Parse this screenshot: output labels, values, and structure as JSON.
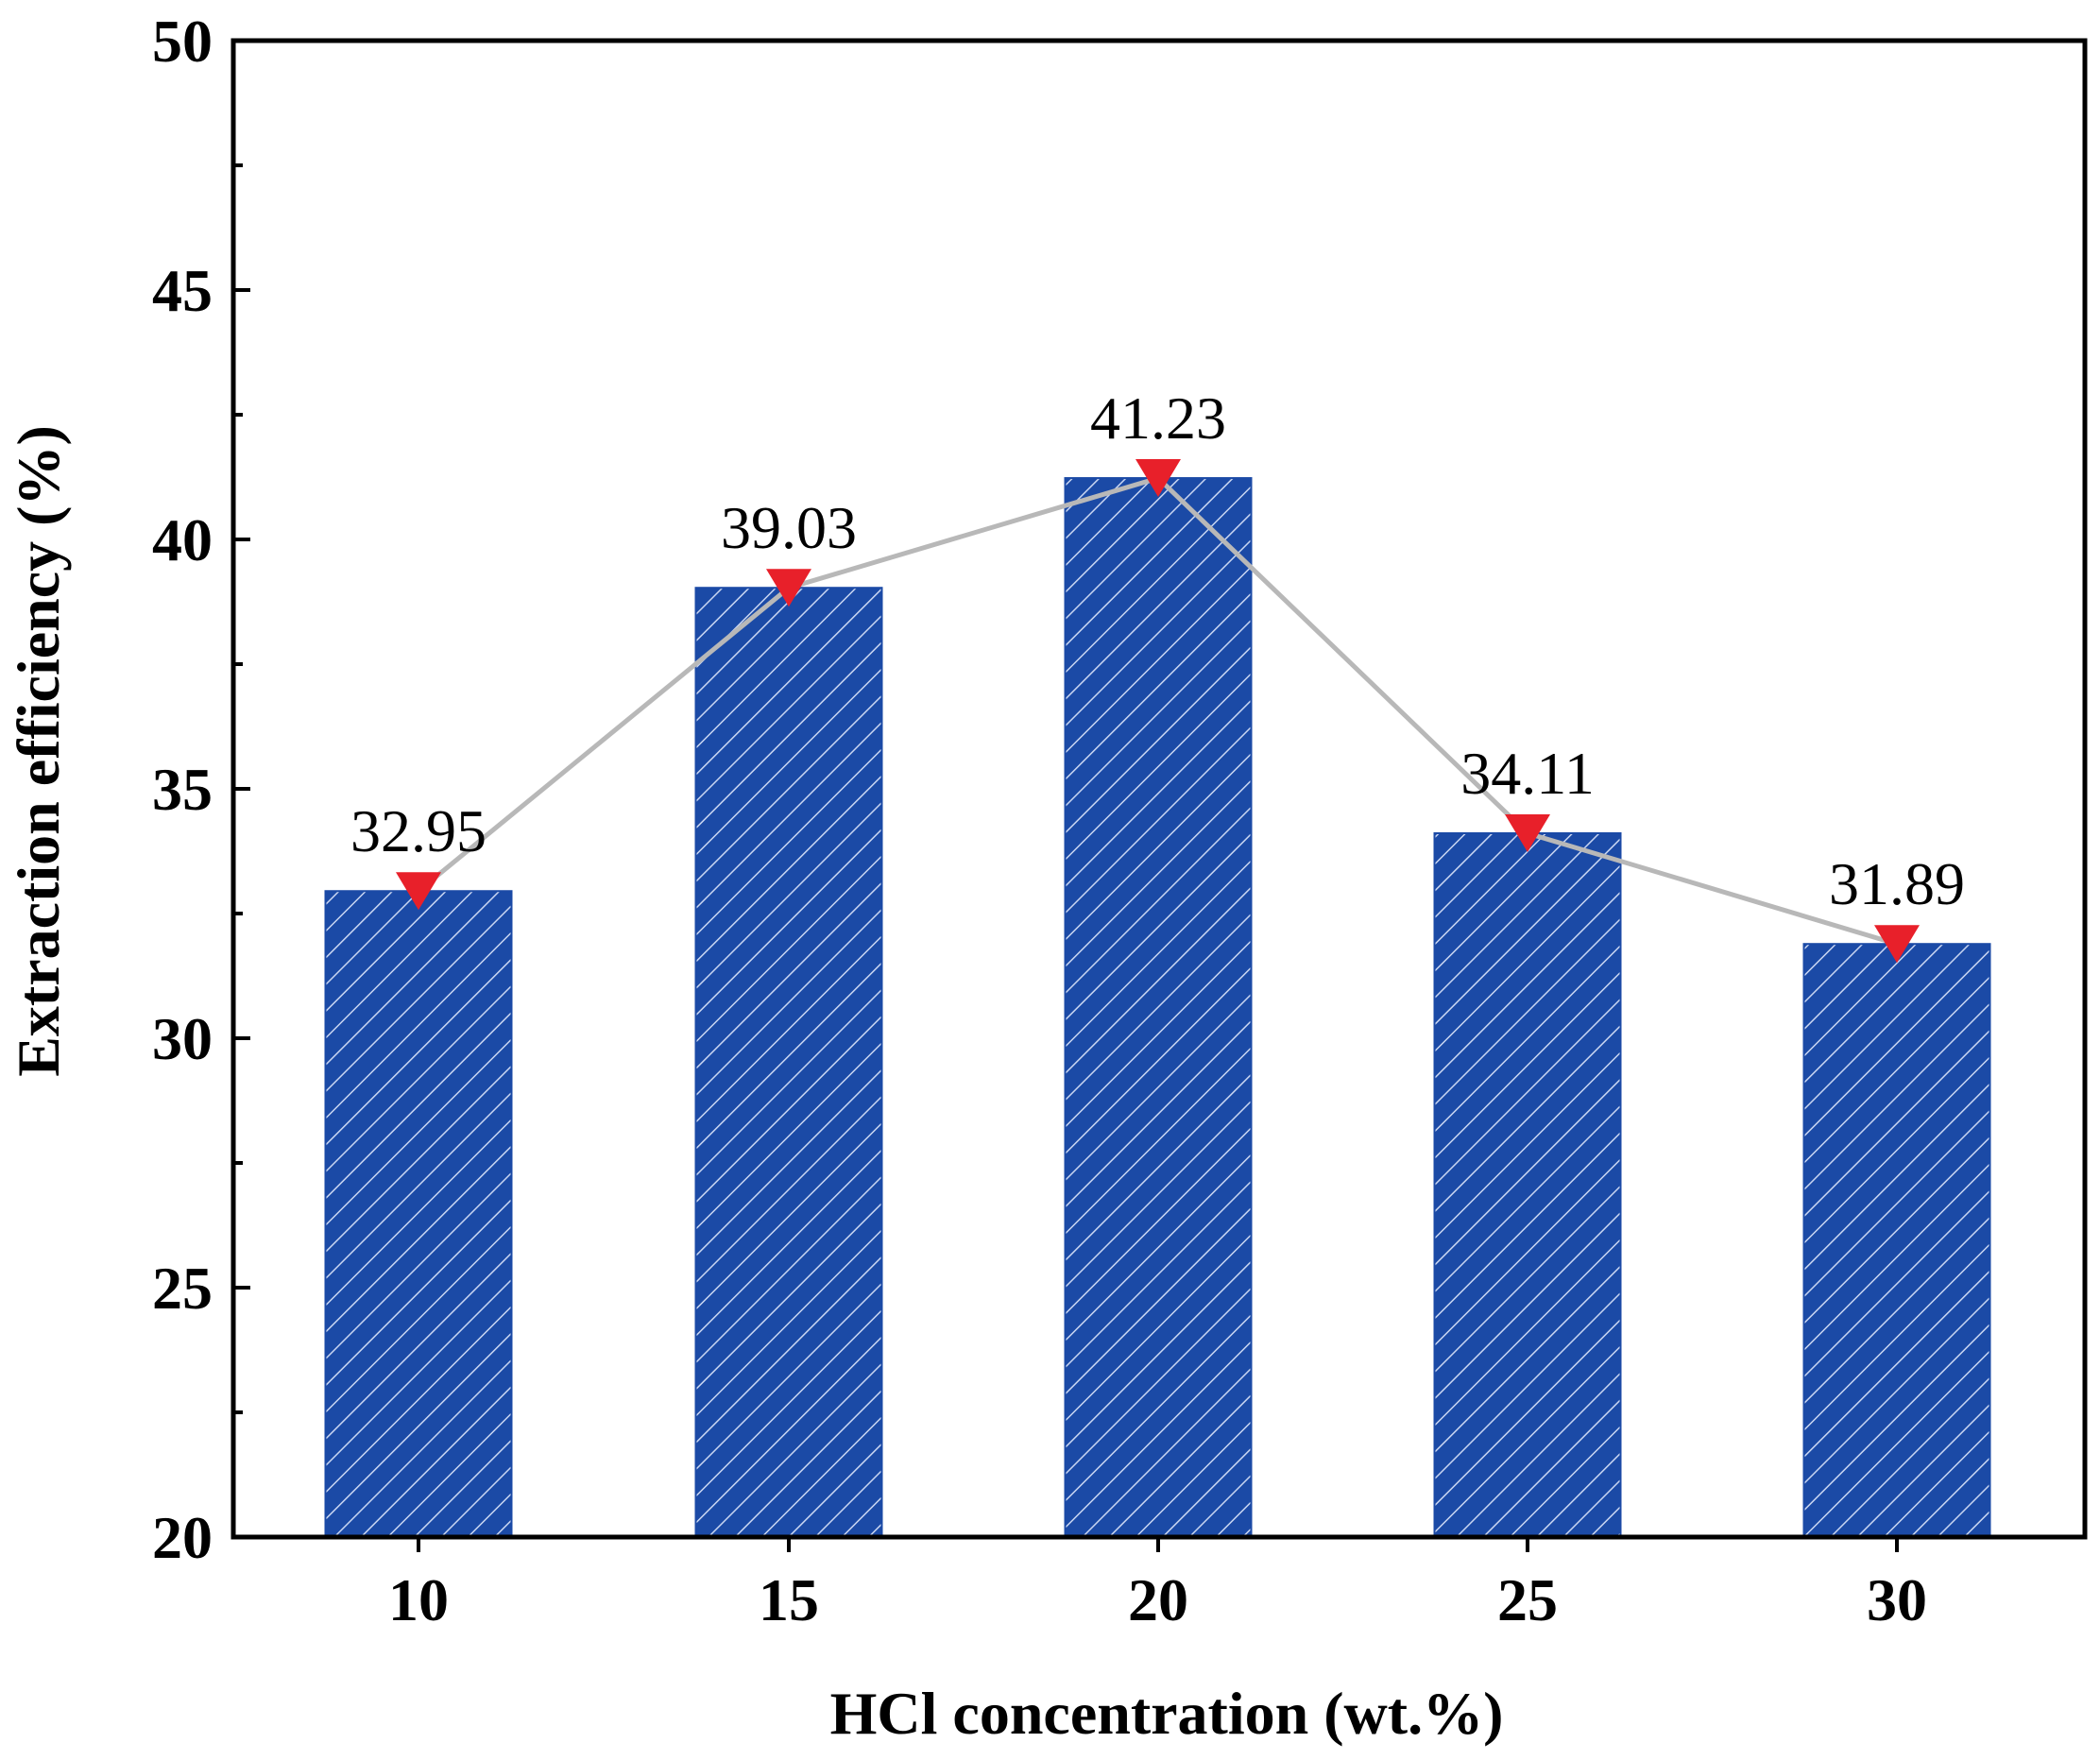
{
  "chart_data": {
    "type": "bar",
    "title": "",
    "xlabel": "HCl concentration (wt.%)",
    "ylabel": "Extraction efficiency (%)",
    "categories": [
      "10",
      "15",
      "20",
      "25",
      "30"
    ],
    "series": [
      {
        "name": "Extraction efficiency (bars)",
        "type": "bar",
        "values": [
          32.95,
          39.03,
          41.23,
          34.11,
          31.89
        ]
      },
      {
        "name": "Extraction efficiency (line)",
        "type": "line",
        "marker": "down-triangle",
        "values": [
          32.95,
          39.03,
          41.23,
          34.11,
          31.89
        ]
      }
    ],
    "data_labels": [
      "32.95",
      "39.03",
      "41.23",
      "34.11",
      "31.89"
    ],
    "ylim": [
      20,
      50
    ],
    "yticks": [
      20,
      25,
      30,
      35,
      40,
      45,
      50
    ],
    "grid": false,
    "legend": "none"
  },
  "colors": {
    "bar_fill": "#1b4aa6",
    "bar_hatch": "#c9d6f2",
    "line": "#b8b8b8",
    "marker": "#e8202a",
    "axis": "#000000"
  }
}
